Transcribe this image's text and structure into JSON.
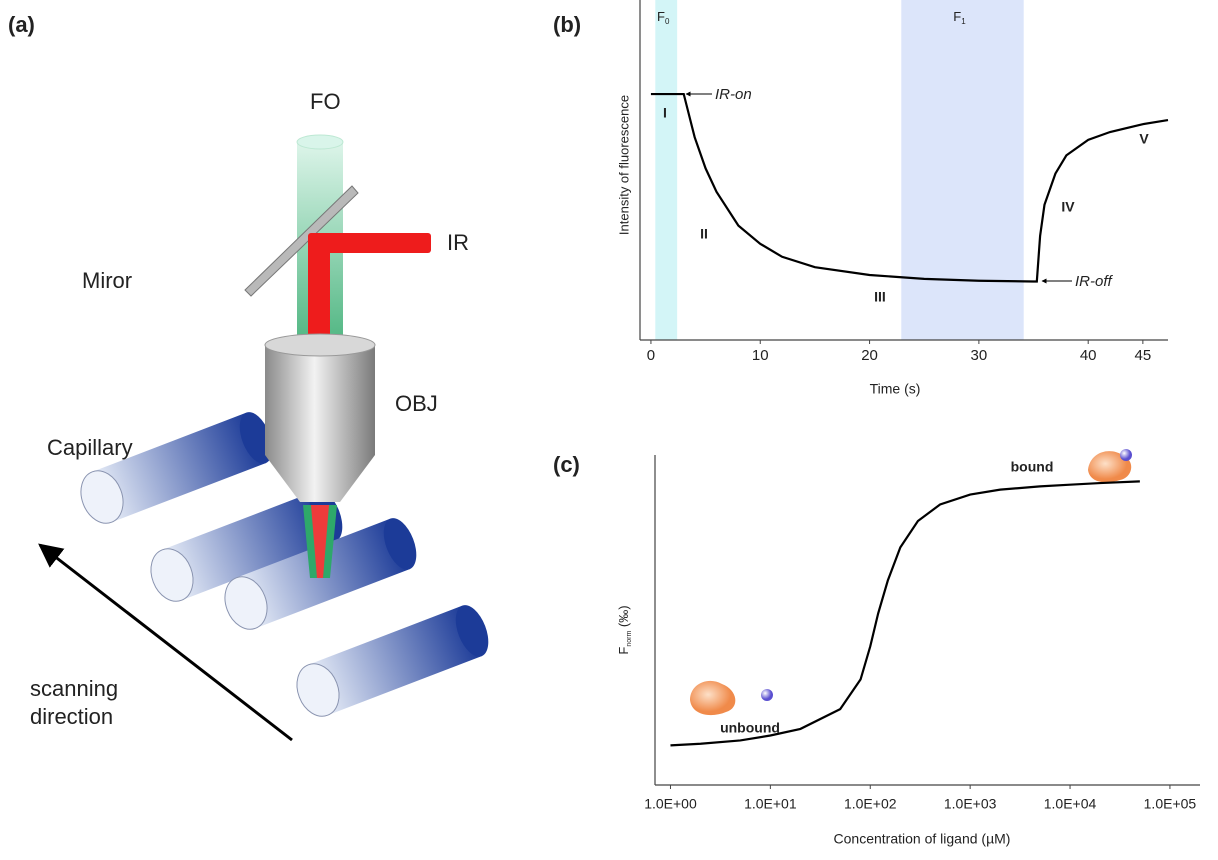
{
  "diagram": {
    "panel_label": "(a)",
    "fo": "FO",
    "ir": "IR",
    "mirror": "Miror",
    "obj": "OBJ",
    "capillary": "Capillary",
    "scanning_direction": [
      "scanning",
      "direction"
    ]
  },
  "chart_data": [
    {
      "type": "line",
      "panel_label": "(b)",
      "xlabel": "Time (s)",
      "ylabel": "Intensity of fluorescence",
      "x": [
        0,
        3,
        4,
        5,
        6,
        8,
        10,
        12,
        15,
        20,
        25,
        30,
        35,
        35.3,
        35.6,
        36,
        37,
        38,
        40,
        42,
        45,
        47.3
      ],
      "series": [
        {
          "color": "#000000",
          "values": [
            0.946,
            0.946,
            0.78,
            0.66,
            0.57,
            0.44,
            0.37,
            0.32,
            0.28,
            0.25,
            0.235,
            0.228,
            0.225,
            0.225,
            0.4,
            0.52,
            0.64,
            0.71,
            0.77,
            0.8,
            0.83,
            0.846
          ]
        }
      ],
      "xlim": [
        -1,
        47.3
      ],
      "ylim": [
        0,
        1
      ],
      "xticks": [
        0,
        10,
        20,
        30,
        40,
        45
      ],
      "bands": [
        {
          "label": "F",
          "sub": "0",
          "xrange": [
            0.4,
            2.4
          ],
          "color": "#d3f5f7"
        },
        {
          "label": "F",
          "sub": "1",
          "xrange": [
            22.9,
            34.1
          ],
          "color": "#dce5fa"
        }
      ],
      "annotations": [
        "IR-on",
        "IR-off"
      ],
      "annotation_color": "#c0282d",
      "phases": [
        "I",
        "II",
        "III",
        "IV",
        "V"
      ],
      "phase_color": "#35279a"
    },
    {
      "type": "line",
      "panel_label": "(c)",
      "xlabel": "Concentration of ligand (µM)",
      "ylabel": {
        "main": "F",
        "sub": "norm",
        "unit": " (‰)"
      },
      "x": [
        1,
        2,
        5,
        10,
        20,
        50,
        80,
        100,
        120,
        150,
        200,
        300,
        500,
        1000,
        2000,
        5000,
        10000,
        20000,
        50000
      ],
      "series": [
        {
          "color": "#000000",
          "values": [
            0.12,
            0.125,
            0.135,
            0.15,
            0.17,
            0.23,
            0.32,
            0.42,
            0.52,
            0.62,
            0.72,
            0.8,
            0.85,
            0.88,
            0.895,
            0.905,
            0.91,
            0.915,
            0.92
          ]
        }
      ],
      "log_x": true,
      "xlim": [
        0.7,
        200000
      ],
      "ylim": [
        0,
        1
      ],
      "xticks": [
        {
          "value": 1,
          "label": "1.0E+00"
        },
        {
          "value": 10,
          "label": "1.0E+01"
        },
        {
          "value": 100,
          "label": "1.0E+02"
        },
        {
          "value": 1000,
          "label": "1.0E+03"
        },
        {
          "value": 10000,
          "label": "1.0E+04"
        },
        {
          "value": 100000,
          "label": "1.0E+05"
        }
      ],
      "annotations": [
        "bound",
        "unbound"
      ],
      "annotation_color": "#c0282d"
    }
  ]
}
